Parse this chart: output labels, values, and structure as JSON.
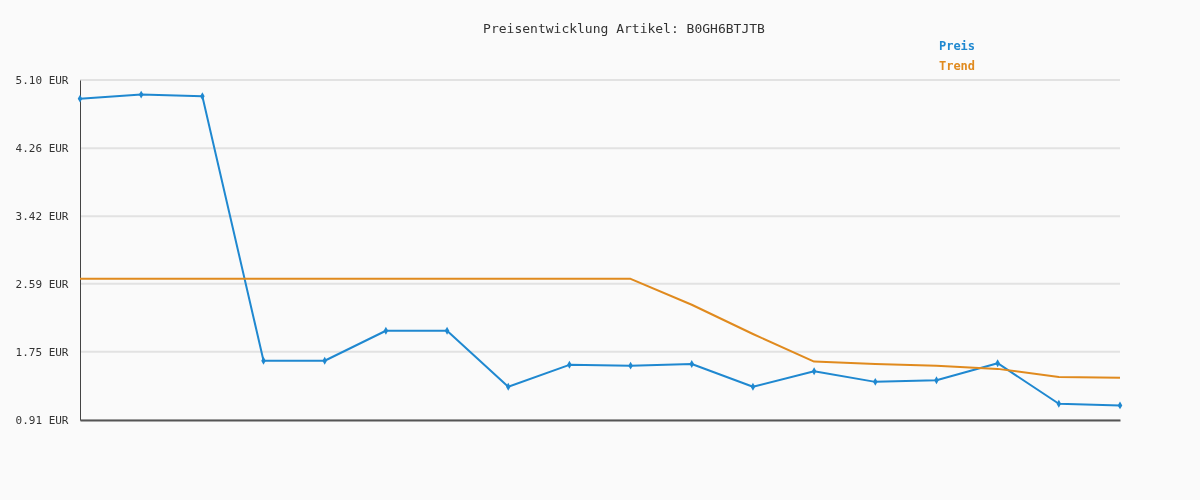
{
  "chart_data": {
    "type": "line",
    "title": "Preisentwicklung Artikel: B0GH6BTJTB",
    "categories": [
      null,
      null,
      null,
      null,
      null,
      null,
      null,
      null,
      null,
      null,
      null,
      null,
      null,
      null,
      null,
      null,
      null,
      null
    ],
    "series": [
      {
        "name": "Preis",
        "color": "#1f88d0",
        "marker": "diamond",
        "values": [
          4.87,
          4.92,
          4.9,
          1.64,
          1.64,
          2.01,
          2.01,
          1.32,
          1.59,
          1.58,
          1.6,
          1.32,
          1.51,
          1.38,
          1.4,
          1.61,
          1.11,
          1.09
        ]
      },
      {
        "name": "Trend",
        "color": "#e08a1e",
        "marker": "none",
        "values": [
          2.65,
          2.65,
          2.65,
          2.65,
          2.65,
          2.65,
          2.65,
          2.65,
          2.65,
          2.65,
          2.33,
          1.97,
          1.63,
          1.6,
          1.58,
          1.54,
          1.44,
          1.43
        ]
      }
    ],
    "ylim": [
      0.91,
      5.1
    ],
    "yticks": [
      {
        "value": 0.91,
        "label": "0.91 EUR"
      },
      {
        "value": 1.75,
        "label": "1.75 EUR"
      },
      {
        "value": 2.59,
        "label": "2.59 EUR"
      },
      {
        "value": 3.42,
        "label": "3.42 EUR"
      },
      {
        "value": 4.26,
        "label": "4.26 EUR"
      },
      {
        "value": 5.1,
        "label": "5.10 EUR"
      }
    ],
    "grid": "y",
    "legend": "top right"
  }
}
